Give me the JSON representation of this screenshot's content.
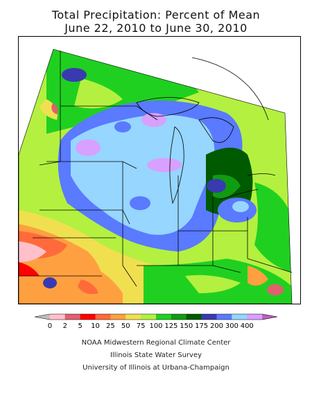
{
  "title_line1": "Total Precipitation: Percent of Mean",
  "title_line2": "June 22, 2010 to June 30, 2010",
  "legend": {
    "labels": [
      "0",
      "2",
      "5",
      "10",
      "25",
      "50",
      "75",
      "100",
      "125",
      "150",
      "175",
      "200",
      "300",
      "400"
    ],
    "colors": [
      "#bdbdbd",
      "#ffc0cb",
      "#e0606e",
      "#ff0000",
      "#ff6a3a",
      "#ffa040",
      "#f0e050",
      "#b4f040",
      "#20d020",
      "#109c10",
      "#005a00",
      "#3a3ab0",
      "#5a7aff",
      "#96d6ff",
      "#d8a0ff",
      "#c060c0"
    ]
  },
  "credits": {
    "line1": "NOAA Midwestern Regional Climate Center",
    "line2": "Illinois State Water Survey",
    "line3": "University of Illinois at Urbana-Champaign"
  }
}
